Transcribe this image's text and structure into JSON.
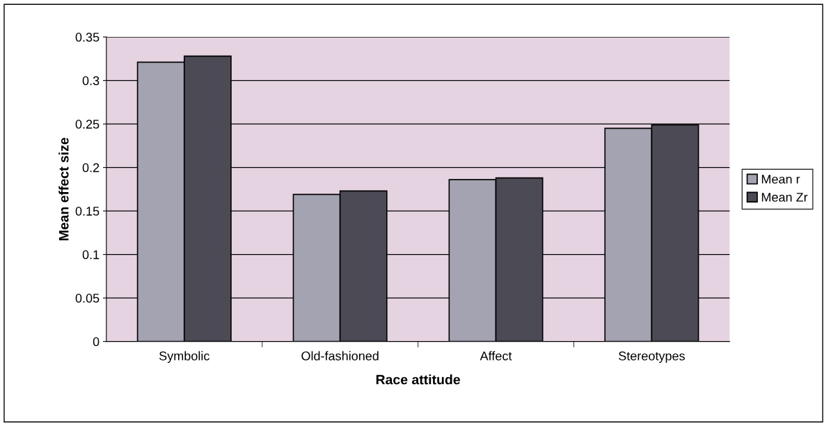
{
  "chart_data": {
    "type": "bar",
    "xlabel": "Race attitude",
    "ylabel": "Mean effect size",
    "categories": [
      "Symbolic",
      "Old-fashioned",
      "Affect",
      "Stereotypes"
    ],
    "series": [
      {
        "name": "Mean r",
        "color": "#a4a3b2",
        "values": [
          0.321,
          0.169,
          0.186,
          0.245
        ]
      },
      {
        "name": "Mean Zr",
        "color": "#4b4a55",
        "values": [
          0.328,
          0.173,
          0.188,
          0.249
        ]
      }
    ],
    "ylim": [
      0,
      0.35
    ],
    "yticks": [
      0,
      {
        "value": 0.05,
        "label": "0.05"
      },
      {
        "value": 0.1,
        "label": "0.1"
      },
      {
        "value": 0.15,
        "label": "0.15"
      },
      {
        "value": 0.2,
        "label": "0.2"
      },
      {
        "value": 0.25,
        "label": "0.25"
      },
      {
        "value": 0.3,
        "label": "0.3"
      },
      {
        "value": 0.35,
        "label": "0.35"
      }
    ],
    "grid": "y",
    "legend": "right"
  }
}
